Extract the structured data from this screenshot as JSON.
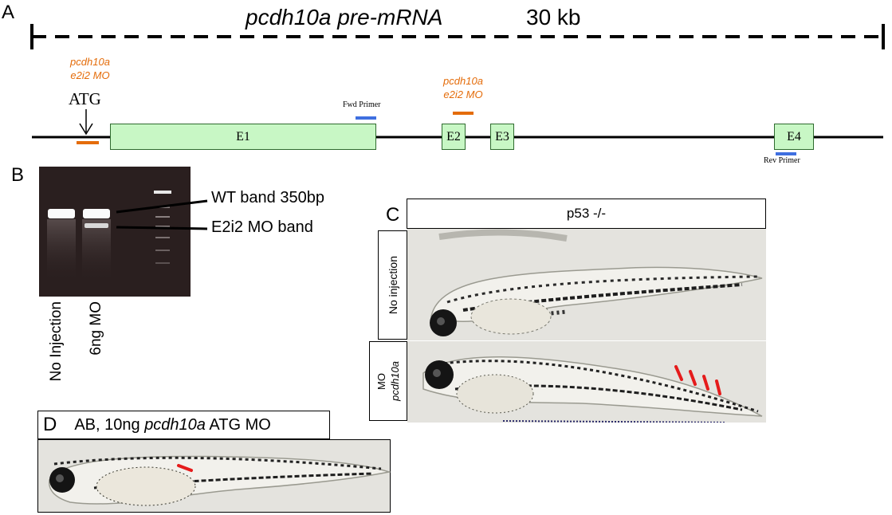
{
  "panel_a": {
    "letter": "A",
    "title": "pcdh10a pre-mRNA",
    "length": "30 kb",
    "mo_label_left_line1": "pcdh10a",
    "mo_label_left_line2": "e2i2 MO",
    "atg": "ATG",
    "fwd_primer": "Fwd Primer",
    "mo_label_mid_line1": "pcdh10a",
    "mo_label_mid_line2": "e2i2 MO",
    "exons": [
      "E1",
      "E2",
      "E3",
      "E4"
    ],
    "rev_primer": "Rev Primer"
  },
  "panel_b": {
    "letter": "B",
    "wt_band": "WT band 350bp",
    "mo_band": "E2i2 MO band",
    "lane1": "No Injection",
    "lane2": "6ng MO"
  },
  "panel_c": {
    "letter": "C",
    "genotype": "p53 -/-",
    "row1": "No injection",
    "row2_line1": "pcdh10a",
    "row2_line2": "MO"
  },
  "panel_d": {
    "letter": "D",
    "title_prefix": "AB, 10ng ",
    "title_italic": "pcdh10a",
    "title_suffix": " ATG MO"
  },
  "colors": {
    "exon_fill": "#c8f7c5",
    "mo_orange": "#e46c0a",
    "primer_blue": "#3f6fe0",
    "arrow_red": "#e51b1b"
  }
}
